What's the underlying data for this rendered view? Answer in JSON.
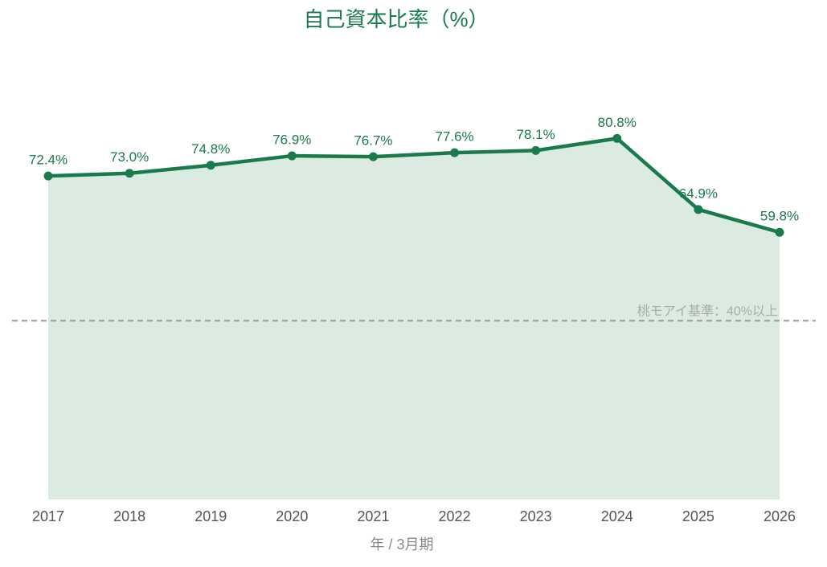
{
  "chart_data": {
    "type": "line",
    "title": "自己資本比率（%）",
    "x_label": "年 / 3月期",
    "categories": [
      "2017",
      "2018",
      "2019",
      "2020",
      "2021",
      "2022",
      "2023",
      "2024",
      "2025",
      "2026"
    ],
    "values": [
      72.4,
      73.0,
      74.8,
      76.9,
      76.7,
      77.6,
      78.1,
      80.8,
      64.9,
      59.8
    ],
    "value_labels": [
      "72.4%",
      "73.0%",
      "74.8%",
      "76.9%",
      "76.7%",
      "77.6%",
      "78.1%",
      "80.8%",
      "64.9%",
      "59.8%"
    ],
    "color": "#1a7a4c",
    "area_color": "#dcebe2",
    "ylim": [
      0,
      100
    ],
    "reference": {
      "value": 40,
      "label": "桃モアイ基準：40%以上"
    }
  }
}
